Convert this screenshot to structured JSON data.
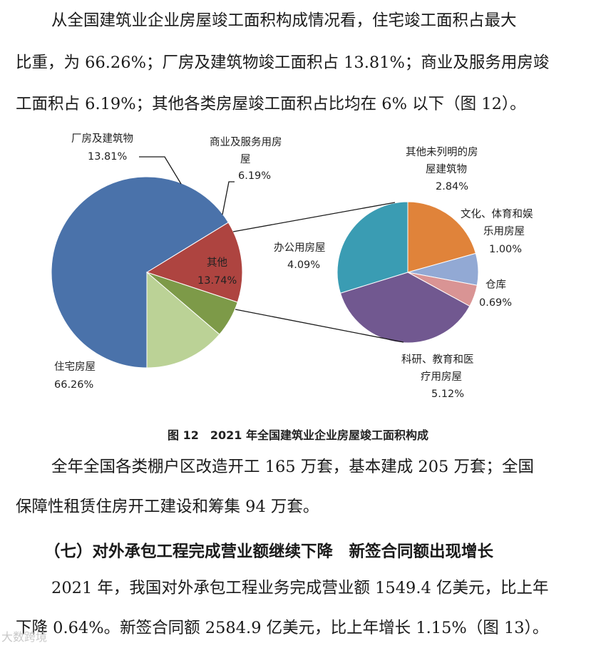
{
  "intro": {
    "line1": "从全国建筑业企业房屋竣工面积构成情况看，住宅竣工面积占最大",
    "line2": "比重，为 66.26%；厂房及建筑物竣工面积占 13.81%；商业及服务用房竣",
    "line3": "工面积占 6.19%；其他各类房屋竣工面积占比均在 6% 以下（图 12）。"
  },
  "chart_data": {
    "type": "pie",
    "main": {
      "slices": [
        {
          "name": "住宅房屋",
          "value": 66.26,
          "label": "66.26%",
          "color": "#4a72aa"
        },
        {
          "name": "厂房及建筑物",
          "value": 13.81,
          "label": "13.81%",
          "color": "#ae4440"
        },
        {
          "name": "商业及服务用房屋",
          "value": 6.19,
          "label": "6.19%",
          "color": "#7d9a48"
        },
        {
          "name": "其他",
          "value": 13.74,
          "label": "13.74%",
          "color": "#bbd296"
        }
      ]
    },
    "breakdown": {
      "parent": "其他",
      "slices": [
        {
          "name": "其他未列明的房屋建筑物",
          "value": 2.84,
          "label": "2.84%",
          "color": "#e0833a"
        },
        {
          "name": "文化、体育和娱乐用房屋",
          "value": 1.0,
          "label": "1.00%",
          "color": "#92a9d4"
        },
        {
          "name": "仓库",
          "value": 0.69,
          "label": "0.69%",
          "color": "#d99494"
        },
        {
          "name": "科研、教育和医疗用房屋",
          "value": 5.12,
          "label": "5.12%",
          "color": "#715890"
        },
        {
          "name": "办公用房屋",
          "value": 4.09,
          "label": "4.09%",
          "color": "#3a9cb3"
        }
      ]
    },
    "labels": {
      "factory_1": "厂房及建筑物",
      "factory_2": "13.81%",
      "commerce_1": "商业及服务用房",
      "commerce_2": "屋",
      "commerce_3": "6.19%",
      "other_1": "其他",
      "other_2": "13.74%",
      "residential_1": "住宅房屋",
      "residential_2": "66.26%",
      "unlisted_1": "其他未列明的房",
      "unlisted_2": "屋建筑物",
      "unlisted_3": "2.84%",
      "culture_1": "文化、体育和娱",
      "culture_2": "乐用房屋",
      "culture_3": "1.00%",
      "warehouse_1": "仓库",
      "warehouse_2": "0.69%",
      "research_1": "科研、教育和医",
      "research_2": "疗用房屋",
      "research_3": "5.12%",
      "office_1": "办公用房屋",
      "office_2": "4.09%"
    }
  },
  "caption": "图 12　2021 年全国建筑业企业房屋竣工面积构成",
  "after": {
    "line1": "全年全国各类棚户区改造开工 165 万套，基本建成 205 万套；全国",
    "line2": "保障性租赁住房开工建设和筹集 94 万套。"
  },
  "section_heading": "（七）对外承包工程完成营业额继续下降　新签合同额出现增长",
  "final": {
    "line1": "2021 年，我国对外承包工程业务完成营业额 1549.4 亿美元，比上年",
    "line2": "下降 0.64%。新签合同额 2584.9 亿美元，比上年增长 1.15%（图 13）。"
  },
  "watermark": "大数跨境"
}
